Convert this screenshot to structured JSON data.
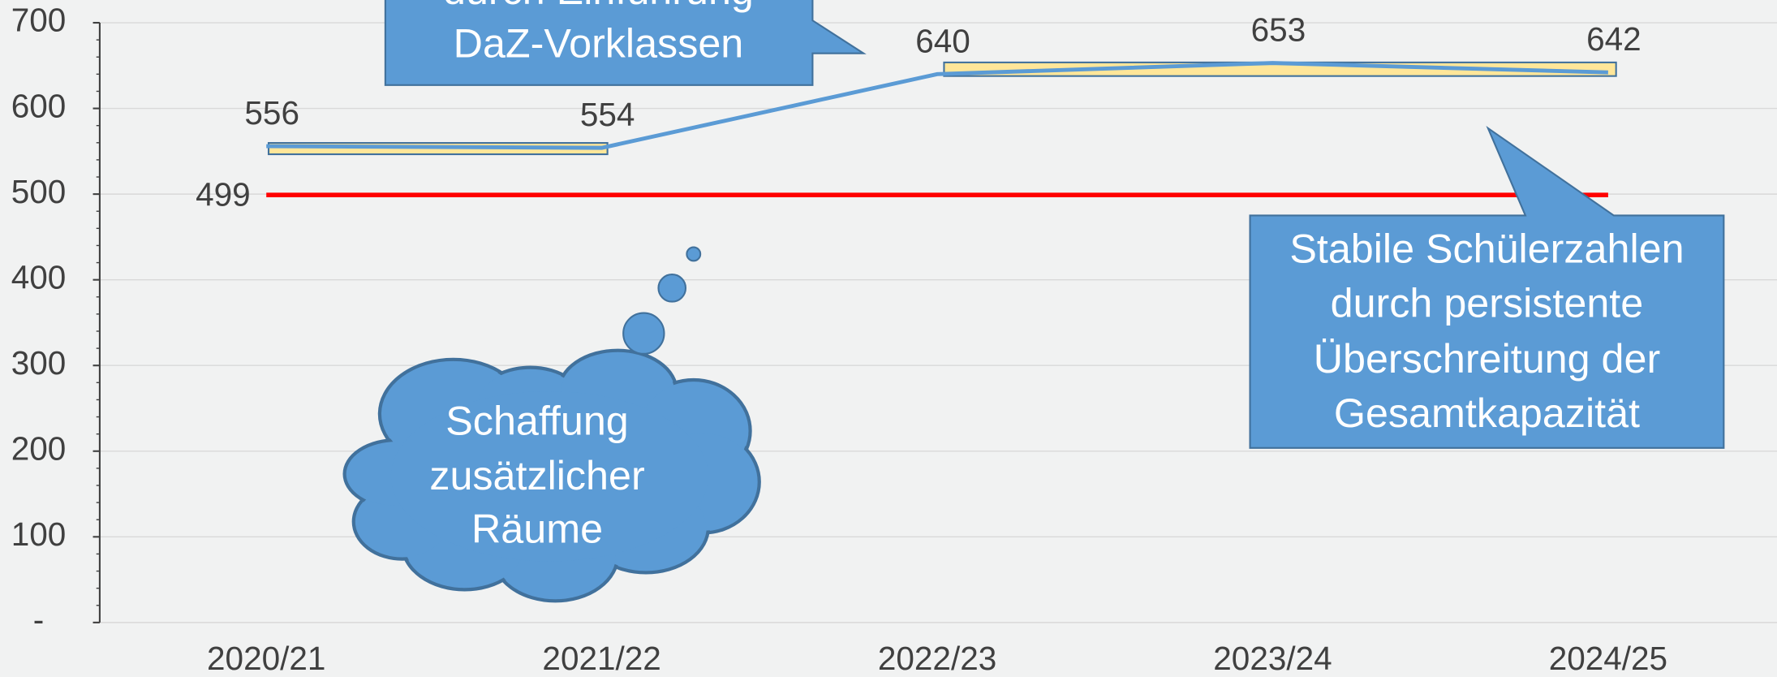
{
  "chart_data": {
    "type": "line",
    "categories": [
      "2020/21",
      "2021/22",
      "2022/23",
      "2023/24",
      "2024/25"
    ],
    "series": [
      {
        "color": "#5b9bd5",
        "values": [
          556,
          554,
          640,
          653,
          642
        ]
      },
      {
        "color": "#ff0000",
        "values": [
          499,
          499,
          499,
          499,
          499
        ]
      }
    ],
    "ylim": [
      0,
      700
    ],
    "yticks": [
      {
        "value": 0,
        "label": "-"
      },
      100,
      200,
      300,
      400,
      500,
      600,
      700
    ],
    "grid": true,
    "annotations": [
      {
        "lines": [
          "durch Einführung",
          "DaZ-Vorklassen"
        ]
      },
      {
        "lines": [
          "Stabile Schülerzahlen",
          "durch persistente",
          "Überschreitung der",
          "Gesamtkapazität"
        ]
      },
      {
        "lines": [
          "Schaffung",
          "zusätzlicher",
          "Räume"
        ]
      }
    ]
  }
}
